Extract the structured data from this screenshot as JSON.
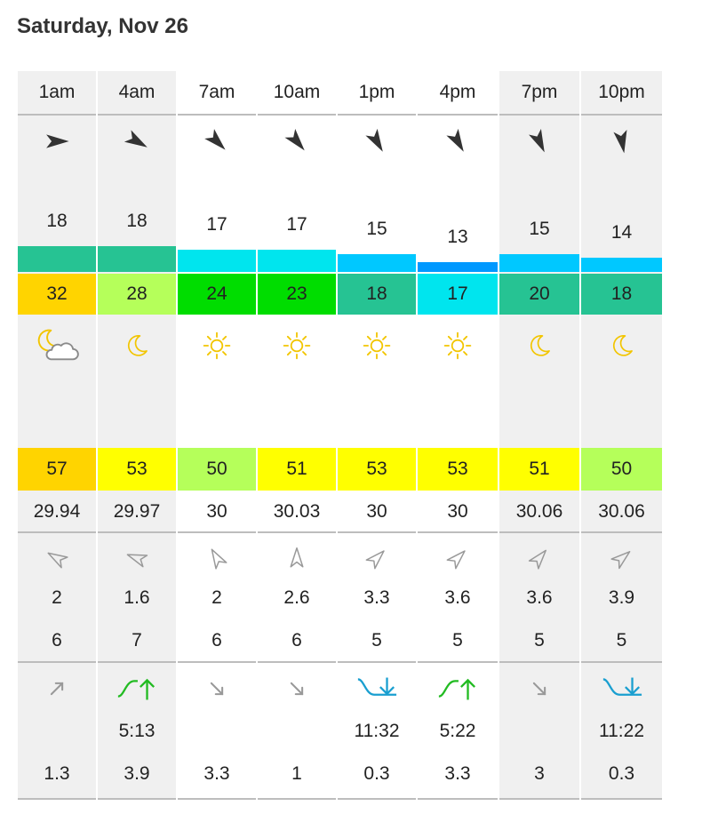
{
  "title": "Saturday, Nov 26",
  "colors": {
    "shade": "#f0f0f0",
    "arrow_dark": "#333333",
    "arrow_light": "#999999",
    "sun": "#f2c500",
    "moon": "#f2c500",
    "cloud": "#8a8a8a",
    "tide_rising": "#22bb22",
    "tide_falling": "#1a9fd0"
  },
  "columns": [
    {
      "hour": "1am",
      "shaded": true,
      "wind_dir_deg": 90,
      "wind_speed": "18",
      "wind_fill": 0.72,
      "wind_color": "#26c393",
      "gust": "32",
      "gust_color": "#ffd400",
      "icon": "moon-cloud-icon",
      "temp": "57",
      "temp_color": "#ffd400",
      "pressure": "29.94",
      "wave_dir_deg": 300,
      "wave_height": "2",
      "wave_period": "6",
      "tide": "arrow-up-right",
      "tide_time": "",
      "tide_height": "1.3"
    },
    {
      "hour": "4am",
      "shaded": true,
      "wind_dir_deg": 120,
      "wind_speed": "18",
      "wind_fill": 0.72,
      "wind_color": "#26c393",
      "gust": "28",
      "gust_color": "#b5ff5a",
      "icon": "moon-icon",
      "temp": "53",
      "temp_color": "#ffff00",
      "pressure": "29.97",
      "wave_dir_deg": 290,
      "wave_height": "1.6",
      "wave_period": "7",
      "tide": "high-tide",
      "tide_time": "5:13",
      "tide_height": "3.9"
    },
    {
      "hour": "7am",
      "shaded": false,
      "wind_dir_deg": 135,
      "wind_speed": "17",
      "wind_fill": 0.66,
      "wind_color": "#00e5ee",
      "gust": "24",
      "gust_color": "#00dd00",
      "icon": "sun-icon",
      "temp": "50",
      "temp_color": "#b5ff5a",
      "pressure": "30",
      "wave_dir_deg": 330,
      "wave_height": "2",
      "wave_period": "6",
      "tide": "arrow-down-right",
      "tide_time": "",
      "tide_height": "3.3"
    },
    {
      "hour": "10am",
      "shaded": false,
      "wind_dir_deg": 140,
      "wind_speed": "17",
      "wind_fill": 0.66,
      "wind_color": "#00e5ee",
      "gust": "23",
      "gust_color": "#00dd00",
      "icon": "sun-icon",
      "temp": "51",
      "temp_color": "#ffff00",
      "pressure": "30.03",
      "wave_dir_deg": 0,
      "wave_height": "2.6",
      "wave_period": "6",
      "tide": "arrow-down-right",
      "tide_time": "",
      "tide_height": "1"
    },
    {
      "hour": "1pm",
      "shaded": false,
      "wind_dir_deg": 150,
      "wind_speed": "15",
      "wind_fill": 0.59,
      "wind_color": "#00c8ff",
      "gust": "18",
      "gust_color": "#26c393",
      "icon": "sun-icon",
      "temp": "53",
      "temp_color": "#ffff00",
      "pressure": "30",
      "wave_dir_deg": 45,
      "wave_height": "3.3",
      "wave_period": "5",
      "tide": "low-tide",
      "tide_time": "11:32",
      "tide_height": "0.3"
    },
    {
      "hour": "4pm",
      "shaded": false,
      "wind_dir_deg": 150,
      "wind_speed": "13",
      "wind_fill": 0.46,
      "wind_color": "#0099ff",
      "gust": "17",
      "gust_color": "#00e5ee",
      "icon": "sun-icon",
      "temp": "53",
      "temp_color": "#ffff00",
      "pressure": "30",
      "wave_dir_deg": 45,
      "wave_height": "3.6",
      "wave_period": "5",
      "tide": "high-tide",
      "tide_time": "5:22",
      "tide_height": "3.3"
    },
    {
      "hour": "7pm",
      "shaded": true,
      "wind_dir_deg": 155,
      "wind_speed": "15",
      "wind_fill": 0.59,
      "wind_color": "#00c8ff",
      "gust": "20",
      "gust_color": "#26c393",
      "icon": "moon-icon",
      "temp": "51",
      "temp_color": "#ffff00",
      "pressure": "30.06",
      "wave_dir_deg": 40,
      "wave_height": "3.6",
      "wave_period": "5",
      "tide": "arrow-down-right",
      "tide_time": "",
      "tide_height": "3"
    },
    {
      "hour": "10pm",
      "shaded": true,
      "wind_dir_deg": 170,
      "wind_speed": "14",
      "wind_fill": 0.53,
      "wind_color": "#00c8ff",
      "gust": "18",
      "gust_color": "#26c393",
      "icon": "moon-icon",
      "temp": "50",
      "temp_color": "#b5ff5a",
      "pressure": "30.06",
      "wave_dir_deg": 50,
      "wave_height": "3.9",
      "wave_period": "5",
      "tide": "low-tide",
      "tide_time": "11:22",
      "tide_height": "0.3"
    }
  ]
}
